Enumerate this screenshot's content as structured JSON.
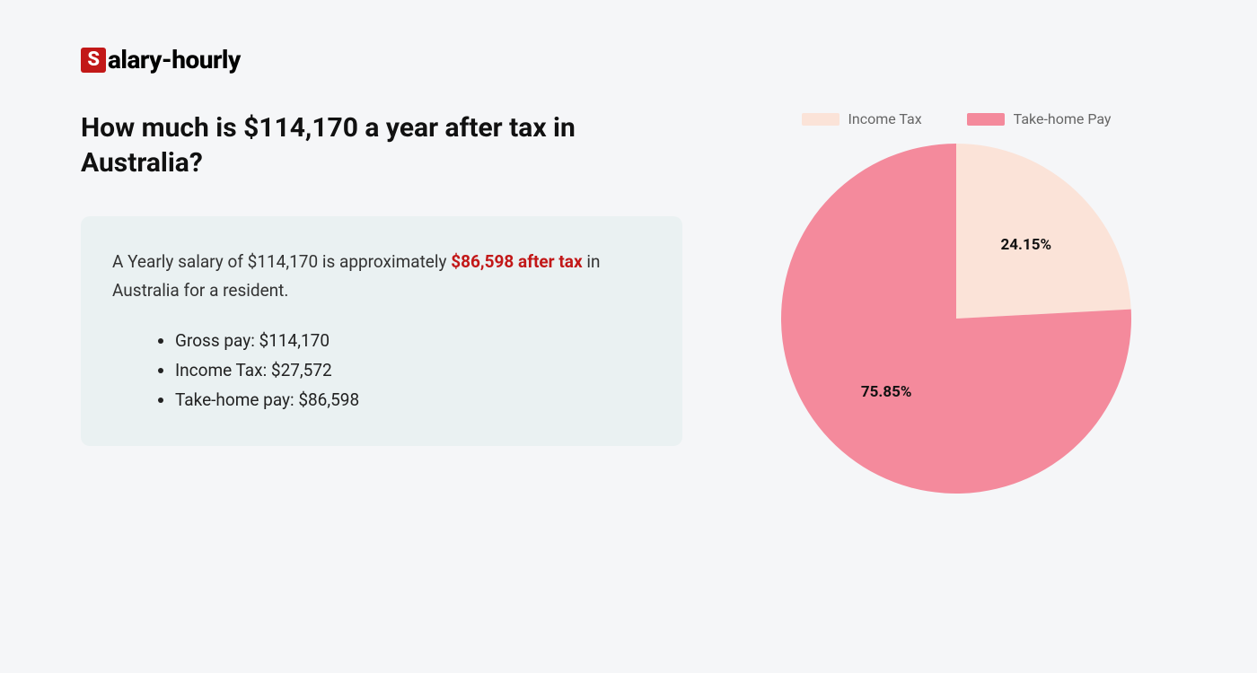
{
  "logo": {
    "badge_letter": "S",
    "text": "alary-hourly",
    "badge_bg": "#c21818",
    "badge_fg": "#ffffff",
    "text_color": "#000000"
  },
  "heading": "How much is $114,170 a year after tax in Australia?",
  "card": {
    "bg": "#eaf1f2",
    "lead_pre": "A Yearly salary of $114,170 is approximately ",
    "lead_highlight": "$86,598 after tax",
    "lead_post": " in Australia for a resident.",
    "highlight_color": "#c21818",
    "bullets": [
      "Gross pay: $114,170",
      "Income Tax: $27,572",
      "Take-home pay: $86,598"
    ]
  },
  "chart": {
    "type": "pie",
    "background_color": "#f5f6f8",
    "radius": 195,
    "start_angle_deg": 0,
    "slices": [
      {
        "label": "Income Tax",
        "value": 24.15,
        "display": "24.15%",
        "color": "#fbe3d8"
      },
      {
        "label": "Take-home Pay",
        "value": 75.85,
        "display": "75.85%",
        "color": "#f48a9c"
      }
    ],
    "label_font_size": 17,
    "label_font_weight": 700,
    "label_color": "#111111",
    "legend": {
      "font_size": 16,
      "text_color": "#666666",
      "swatch_w": 42,
      "swatch_h": 14
    }
  }
}
